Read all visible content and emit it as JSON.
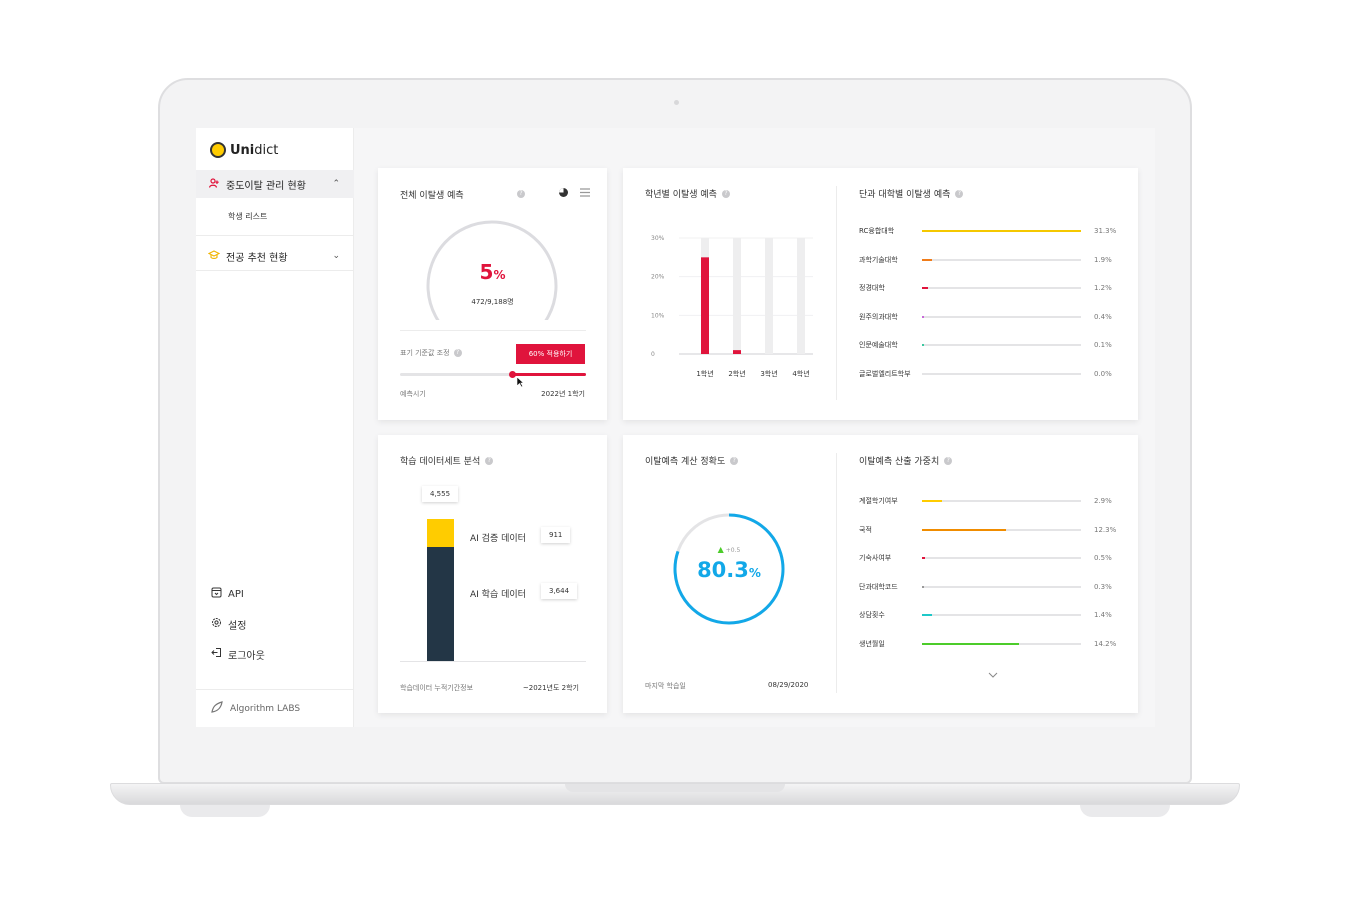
{
  "app": {
    "logo_bold": "Uni",
    "logo_rest": "dict"
  },
  "sidebar": {
    "dropout": {
      "label": "중도이탈 관리 현황",
      "chevron": "⌃",
      "sub": "학생 리스트"
    },
    "major": {
      "label": "전공 추천 현황",
      "chevron": "⌄"
    },
    "bottom": [
      {
        "label": "API",
        "icon": "api-icon"
      },
      {
        "label": "설정",
        "icon": "gear-icon"
      },
      {
        "label": "로그아웃",
        "icon": "logout-icon"
      }
    ],
    "footer": "Algorithm LABS"
  },
  "total": {
    "title": "전체 이탈생 예측",
    "percent": "5",
    "percent_unit": "%",
    "count": "472/9,188명",
    "gauge_fraction": 0.05,
    "threshold_label": "표기 기준값 조정",
    "apply_button": "60% 적용하기",
    "slider_fraction": 0.6,
    "period_label": "예측시기",
    "period_value": "2022년 1학기"
  },
  "grade": {
    "title": "학년별 이탈생 예측",
    "chart_data": {
      "type": "bar",
      "categories": [
        "1학년",
        "2학년",
        "3학년",
        "4학년"
      ],
      "values": [
        25,
        1,
        0,
        0
      ],
      "yticks": [
        "30%",
        "20%",
        "10%",
        "0"
      ],
      "ylim": [
        0,
        30
      ]
    }
  },
  "college": {
    "title": "단과 대학별 이탈생 예측",
    "rows": [
      {
        "label": "RC융합대학",
        "value": 31.3,
        "display": "31.3%",
        "color": "#f5c800"
      },
      {
        "label": "과학기술대학",
        "value": 1.9,
        "display": "1.9%",
        "color": "#f07c1a"
      },
      {
        "label": "정경대학",
        "value": 1.2,
        "display": "1.2%",
        "color": "#e0143c"
      },
      {
        "label": "원주의과대학",
        "value": 0.4,
        "display": "0.4%",
        "color": "#c86ad8"
      },
      {
        "label": "인문예술대학",
        "value": 0.1,
        "display": "0.1%",
        "color": "#3cc8a0"
      },
      {
        "label": "글로벌엘리트학부",
        "value": 0.0,
        "display": "0.0%",
        "color": "#cccccc"
      }
    ],
    "max": 31.3
  },
  "dataset": {
    "title": "학습 데이터세트 분석",
    "total": "4,555",
    "segments": [
      {
        "label": "AI 검증 데이터",
        "display": "911",
        "value": 911,
        "color": "#ffcc00"
      },
      {
        "label": "AI 학습 데이터",
        "display": "3,644",
        "value": 3644,
        "color": "#233646"
      }
    ],
    "period_label": "학습데이터 누적기간정보",
    "period_value": "~2021년도 2학기"
  },
  "accuracy": {
    "title": "이탈예측 계산 정확도",
    "value": "80.3",
    "unit": "%",
    "delta": "+0.5",
    "fraction": 0.803,
    "last_label": "마지막 학습일",
    "last_value": "08/29/2020"
  },
  "weights": {
    "title": "이탈예측 산출 가중치",
    "rows": [
      {
        "label": "계절학기여부",
        "value": 2.9,
        "display": "2.9%",
        "color": "#ffcc00"
      },
      {
        "label": "국적",
        "value": 12.3,
        "display": "12.3%",
        "color": "#f08c00"
      },
      {
        "label": "기숙사여부",
        "value": 0.5,
        "display": "0.5%",
        "color": "#e0143c"
      },
      {
        "label": "단과대학코드",
        "value": 0.3,
        "display": "0.3%",
        "color": "#999999"
      },
      {
        "label": "상담횟수",
        "value": 1.4,
        "display": "1.4%",
        "color": "#1ec8c8"
      },
      {
        "label": "생년월일",
        "value": 14.2,
        "display": "14.2%",
        "color": "#4ccc2a"
      }
    ],
    "max": 23.3,
    "more_icon": "chevron-down-icon"
  }
}
